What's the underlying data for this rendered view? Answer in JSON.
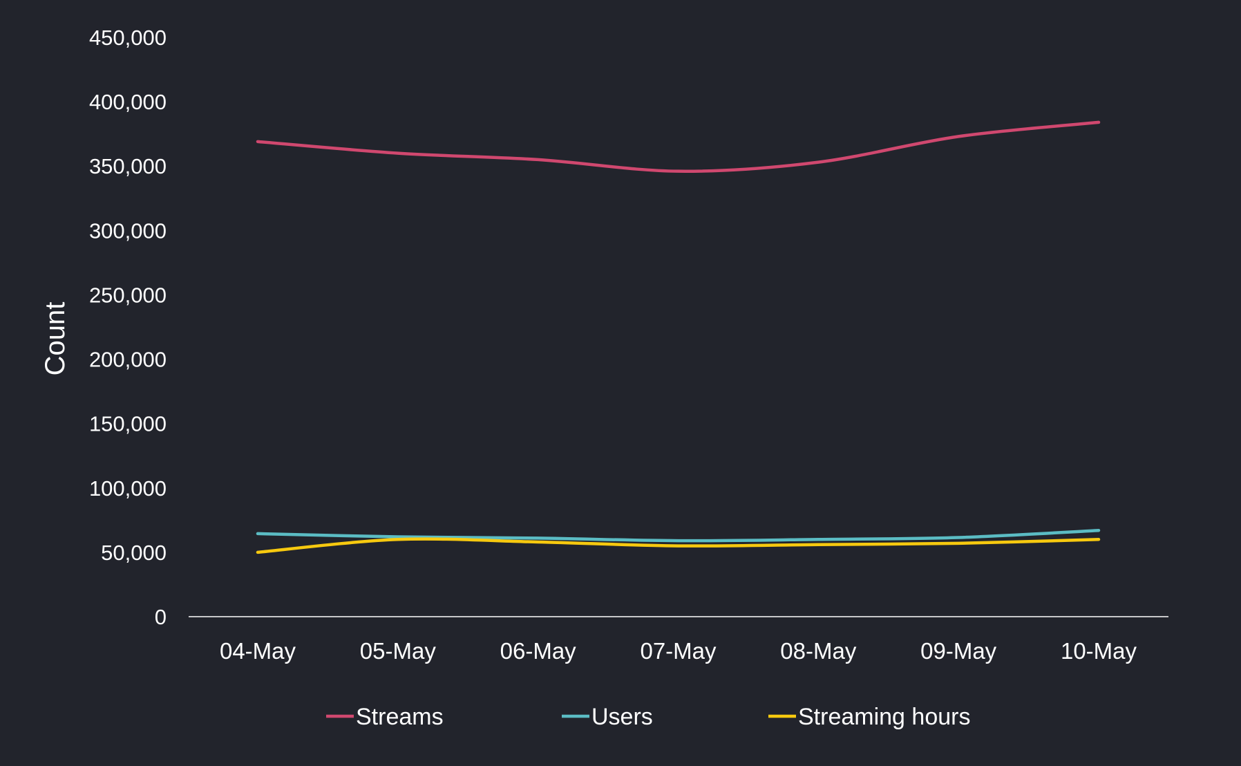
{
  "chart_data": {
    "type": "line",
    "title": "",
    "xlabel": "",
    "ylabel": "Count",
    "ylim": [
      0,
      450000
    ],
    "yticks": [
      0,
      50000,
      100000,
      150000,
      200000,
      250000,
      300000,
      350000,
      400000,
      450000
    ],
    "ytick_labels": [
      "0",
      "50,000",
      "100,000",
      "150,000",
      "200,000",
      "250,000",
      "300,000",
      "350,000",
      "400,000",
      "450,000"
    ],
    "categories": [
      "04-May",
      "05-May",
      "06-May",
      "07-May",
      "08-May",
      "09-May",
      "10-May"
    ],
    "grid": false,
    "smooth": true,
    "legend_position": "bottom",
    "series": [
      {
        "name": "Streams",
        "color": "#d0486f",
        "values": [
          369000,
          360000,
          355000,
          346000,
          353000,
          373000,
          384000
        ]
      },
      {
        "name": "Users",
        "color": "#5bbcc4",
        "values": [
          64500,
          62000,
          61000,
          59000,
          60000,
          61500,
          67000
        ]
      },
      {
        "name": "Streaming hours",
        "color": "#f7c90f",
        "values": [
          50000,
          60000,
          58000,
          55000,
          56000,
          57000,
          60000
        ]
      }
    ]
  }
}
